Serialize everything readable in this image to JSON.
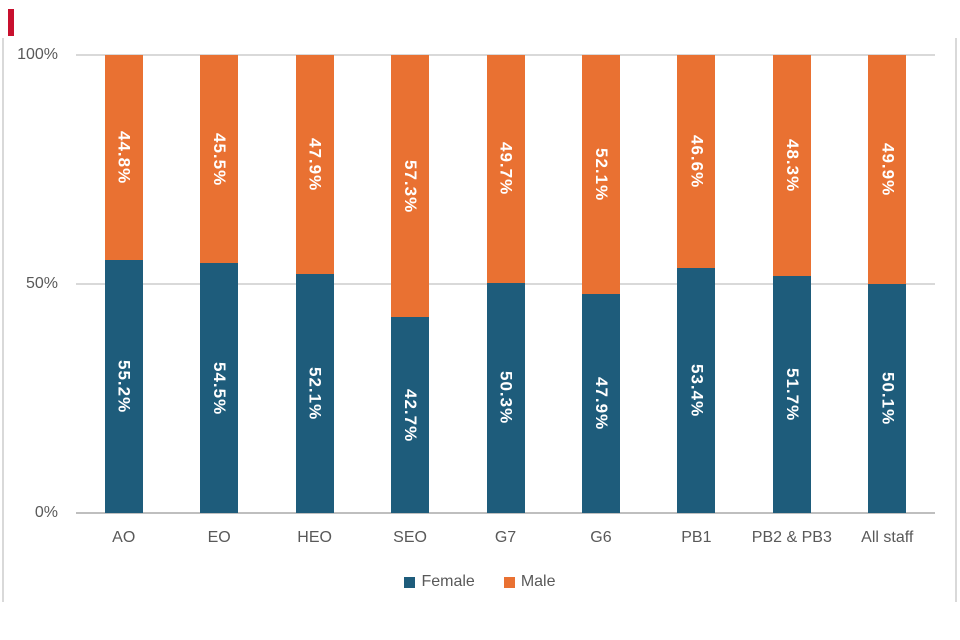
{
  "decorations": {
    "accent_mark_color": "#C8102E"
  },
  "chart_data": {
    "type": "bar",
    "stacked": true,
    "orientation": "vertical",
    "title": "",
    "categories": [
      "AO",
      "EO",
      "HEO",
      "SEO",
      "G7",
      "G6",
      "PB1",
      "PB2 & PB3",
      "All staff"
    ],
    "series": [
      {
        "name": "Female",
        "color": "#1E5C7B",
        "values": [
          55.2,
          54.5,
          52.1,
          42.7,
          50.3,
          47.9,
          53.4,
          51.7,
          50.1
        ],
        "labels": [
          "55.2%",
          "54.5%",
          "52.1%",
          "42.7%",
          "50.3%",
          "47.9%",
          "53.4%",
          "51.7%",
          "50.1%"
        ]
      },
      {
        "name": "Male",
        "color": "#E97132",
        "values": [
          44.8,
          45.5,
          47.9,
          57.3,
          49.7,
          52.1,
          46.6,
          48.3,
          49.9
        ],
        "labels": [
          "44.8%",
          "45.5%",
          "47.9%",
          "57.3%",
          "49.7%",
          "52.1%",
          "46.6%",
          "48.3%",
          "49.9%"
        ]
      }
    ],
    "ylim": [
      0,
      100
    ],
    "y_ticks": [
      {
        "value": 0,
        "label": "0%"
      },
      {
        "value": 50,
        "label": "50%"
      },
      {
        "value": 100,
        "label": "100%"
      }
    ],
    "grid": "horizontal",
    "legend_position": "bottom",
    "colors": {
      "bar_label_text": "#FFFFFF",
      "axis_text": "#595959",
      "gridline": "#D9D9D9",
      "axis_line": "#BFBFBF",
      "frame_line": "#D9D9D9"
    }
  }
}
